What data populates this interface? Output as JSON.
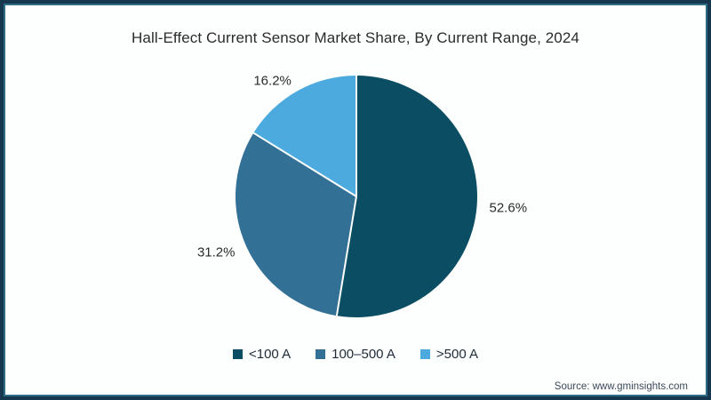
{
  "title": "Hall-Effect Current Sensor Market Share, By Current Range, 2024",
  "source": "Source: www.gminsights.com",
  "frame_colors": {
    "border_outer": "#16384e",
    "border_inner": "#2e6b85",
    "background": "#ffffff"
  },
  "chart_data": {
    "type": "pie",
    "title": "Hall-Effect Current Sensor Market Share, By Current Range, 2024",
    "start_angle_deg": 0,
    "direction": "clockwise",
    "legend_position": "bottom",
    "separator_color": "#ffffff",
    "label_color": "#2b2b2b",
    "slices": [
      {
        "label": "<100 A",
        "value": 52.6,
        "display": "52.6%",
        "color": "#0b4e64"
      },
      {
        "label": "100–500 A",
        "value": 31.2,
        "display": "31.2%",
        "color": "#327096"
      },
      {
        "label": ">500 A",
        "value": 16.2,
        "display": "16.2%",
        "color": "#4daade"
      }
    ]
  }
}
